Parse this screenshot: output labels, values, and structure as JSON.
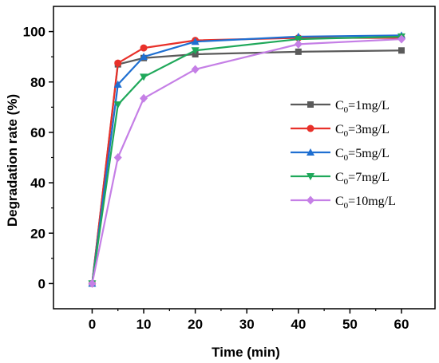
{
  "chart_data": {
    "type": "line",
    "xlabel": "Time (min)",
    "ylabel": "Degradation rate (%)",
    "xlim": [
      -7.5,
      66.5
    ],
    "ylim": [
      -10,
      110
    ],
    "xticks": [
      0,
      10,
      20,
      30,
      40,
      50,
      60
    ],
    "yticks": [
      0,
      20,
      40,
      60,
      80,
      100
    ],
    "grid": false,
    "legend_position": "center-right",
    "x": [
      0,
      5,
      10,
      20,
      40,
      60
    ],
    "series": [
      {
        "name_main": "C",
        "name_sub": "0",
        "name_rest": "=1mg/L",
        "color": "#5a5a5a",
        "marker": "square",
        "values": [
          0,
          87,
          89.5,
          91,
          92,
          92.5
        ]
      },
      {
        "name_main": "C",
        "name_sub": "0",
        "name_rest": "=3mg/L",
        "color": "#e8312a",
        "marker": "circle",
        "values": [
          0,
          87.5,
          93.5,
          96.5,
          97.5,
          97.5
        ]
      },
      {
        "name_main": "C",
        "name_sub": "0",
        "name_rest": "=5mg/L",
        "color": "#1f6fd1",
        "marker": "triangle-up",
        "values": [
          0,
          79,
          90,
          96,
          98,
          98.5
        ]
      },
      {
        "name_main": "C",
        "name_sub": "0",
        "name_rest": "=7mg/L",
        "color": "#1fa85a",
        "marker": "triangle-down",
        "values": [
          0,
          71,
          82,
          92.5,
          97,
          98
        ]
      },
      {
        "name_main": "C",
        "name_sub": "0",
        "name_rest": "=10mg/L",
        "color": "#c57fe6",
        "marker": "diamond",
        "values": [
          0,
          50,
          73.5,
          85,
          95,
          97
        ]
      }
    ]
  }
}
